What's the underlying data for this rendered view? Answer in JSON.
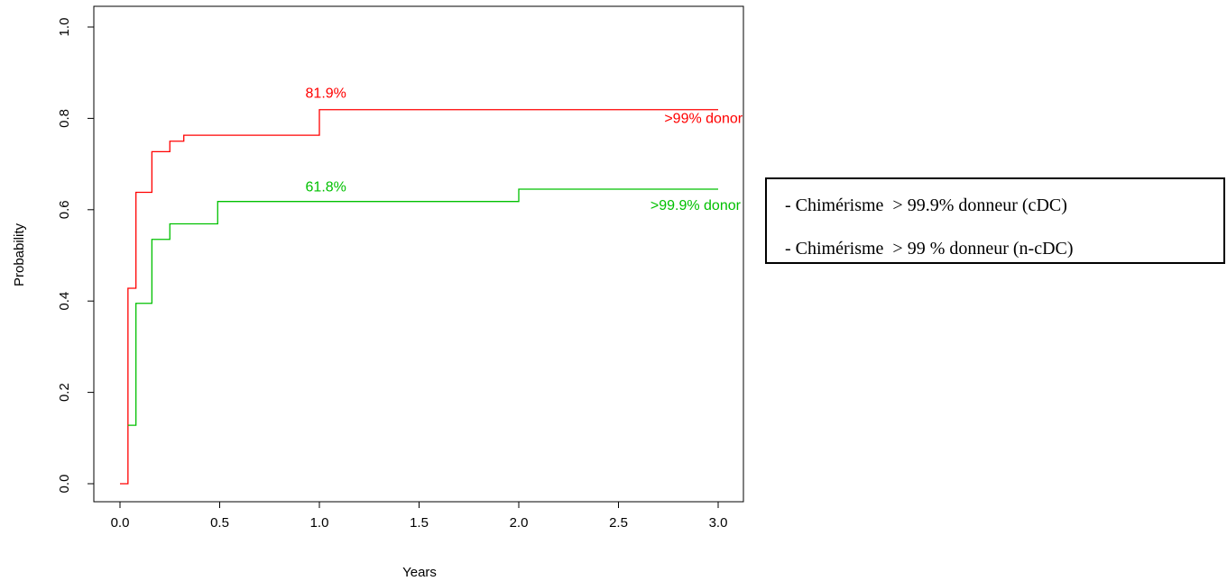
{
  "chart_data": {
    "type": "line",
    "xlabel": "Years",
    "ylabel": "Probability",
    "xlim": [
      0,
      3
    ],
    "ylim": [
      0,
      1
    ],
    "xticks": [
      "0.0",
      "0.5",
      "1.0",
      "1.5",
      "2.0",
      "2.5",
      "3.0"
    ],
    "yticks": [
      "0.0",
      "0.2",
      "0.4",
      "0.6",
      "0.8",
      "1.0"
    ],
    "series": [
      {
        "name": ">99% donor",
        "color": "#ff0000",
        "step": true,
        "x": [
          0,
          0.04,
          0.08,
          0.16,
          0.25,
          0.32,
          0.5,
          1.0,
          1.18,
          2.0,
          2.4,
          3.0
        ],
        "y": [
          0,
          0.428,
          0.638,
          0.727,
          0.75,
          0.763,
          0.763,
          0.819,
          0.819,
          0.819,
          0.819,
          0.819
        ]
      },
      {
        "name": ">99.9% donor",
        "color": "#00c000",
        "step": true,
        "x": [
          0.04,
          0.08,
          0.16,
          0.25,
          0.49,
          0.7,
          1.0,
          2.0,
          2.4,
          3.0
        ],
        "y": [
          0.128,
          0.395,
          0.535,
          0.569,
          0.618,
          0.618,
          0.618,
          0.645,
          0.645,
          0.645
        ]
      }
    ],
    "annotations": [
      {
        "text": "81.9%",
        "x": 0.93,
        "y": 0.845,
        "color": "#ff0000"
      },
      {
        "text": ">99% donor",
        "x": 2.73,
        "y": 0.79,
        "color": "#ff0000"
      },
      {
        "text": "61.8%",
        "x": 0.93,
        "y": 0.64,
        "color": "#00c000"
      },
      {
        "text": ">99.9% donor",
        "x": 2.66,
        "y": 0.6,
        "color": "#00c000"
      }
    ]
  },
  "legend": {
    "items": [
      "- Chimérisme  > 99.9% donneur (cDC)",
      "- Chimérisme  > 99 % donneur (n-cDC)"
    ]
  }
}
